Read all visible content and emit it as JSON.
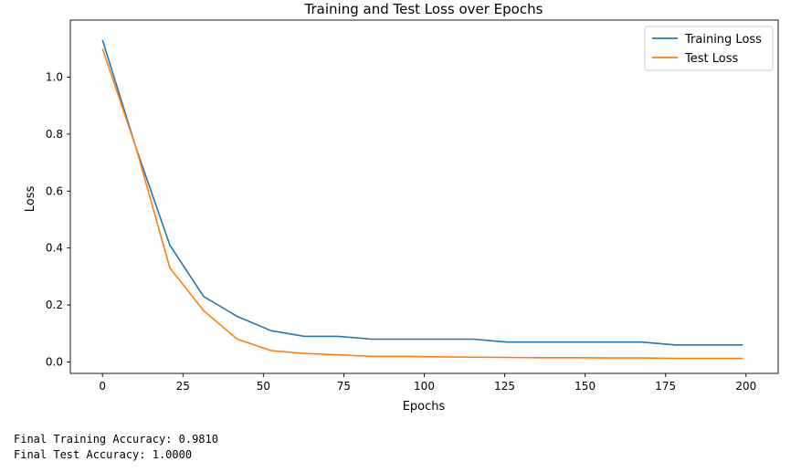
{
  "chart_data": {
    "type": "line",
    "title": "Training and Test Loss over Epochs",
    "xlabel": "Epochs",
    "ylabel": "Loss",
    "xlim": [
      -10,
      210
    ],
    "ylim": [
      -0.04,
      1.2
    ],
    "x_ticks": [
      0,
      25,
      50,
      75,
      100,
      125,
      150,
      175,
      200
    ],
    "y_ticks": [
      0.0,
      0.2,
      0.4,
      0.6,
      0.8,
      1.0
    ],
    "x_tick_labels": [
      "0",
      "25",
      "50",
      "75",
      "100",
      "125",
      "150",
      "175",
      "200"
    ],
    "y_tick_labels": [
      "0.0",
      "0.2",
      "0.4",
      "0.6",
      "0.8",
      "1.0"
    ],
    "legend_position": "top-right",
    "series": [
      {
        "name": "Training Loss",
        "color": "#1f77b4",
        "x_step": 10,
        "values": [
          1.13,
          0.75,
          0.41,
          0.23,
          0.16,
          0.11,
          0.09,
          0.09,
          0.08,
          0.08,
          0.08,
          0.08,
          0.07,
          0.07,
          0.07,
          0.07,
          0.07,
          0.06,
          0.06,
          0.06
        ]
      },
      {
        "name": "Test Loss",
        "color": "#ff7f0e",
        "x_step": 10,
        "values": [
          1.1,
          0.75,
          0.33,
          0.18,
          0.08,
          0.04,
          0.03,
          0.025,
          0.02,
          0.02,
          0.018,
          0.017,
          0.016,
          0.015,
          0.015,
          0.014,
          0.014,
          0.013,
          0.013,
          0.013
        ]
      }
    ]
  },
  "output": {
    "train_acc": "Final Training Accuracy: 0.9810",
    "test_acc": "Final Test Accuracy: 1.0000"
  }
}
